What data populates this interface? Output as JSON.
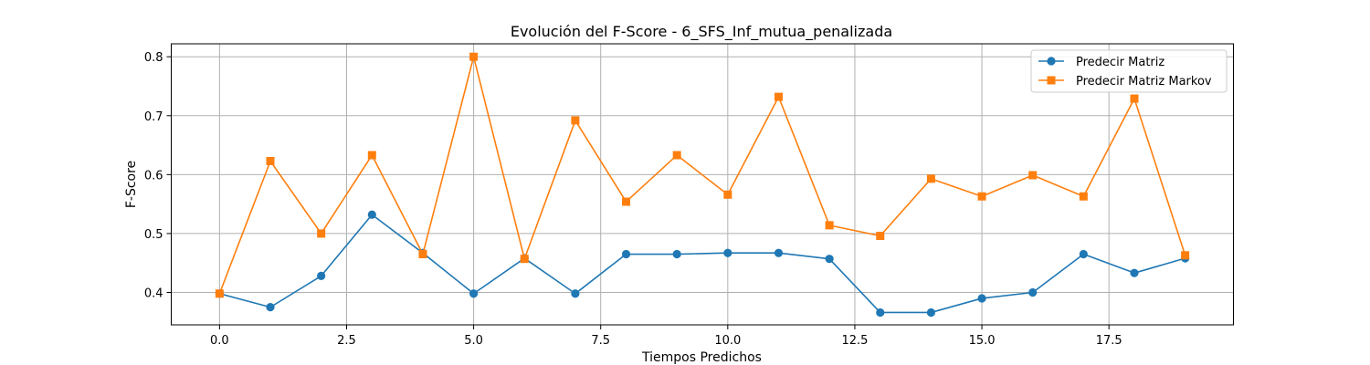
{
  "chart_data": {
    "type": "line",
    "title": "Evolución del F-Score - 6_SFS_Inf_mutua_penalizada",
    "xlabel": "Tiempos Predichos",
    "ylabel": "F-Score",
    "xlim": [
      -0.95,
      19.95
    ],
    "ylim": [
      0.345,
      0.822
    ],
    "x_ticks": [
      0.0,
      2.5,
      5.0,
      7.5,
      10.0,
      12.5,
      15.0,
      17.5
    ],
    "x_tick_labels": [
      "0.0",
      "2.5",
      "5.0",
      "7.5",
      "10.0",
      "12.5",
      "15.0",
      "17.5"
    ],
    "y_ticks": [
      0.4,
      0.5,
      0.6,
      0.7,
      0.8
    ],
    "y_tick_labels": [
      "0.4",
      "0.5",
      "0.6",
      "0.7",
      "0.8"
    ],
    "grid": true,
    "legend_position": "top-right",
    "x": [
      0,
      1,
      2,
      3,
      4,
      5,
      6,
      7,
      8,
      9,
      10,
      11,
      12,
      13,
      14,
      15,
      16,
      17,
      18,
      19
    ],
    "series": [
      {
        "name": "Predecir Matriz",
        "color": "#1f77b4",
        "marker": "circle",
        "values": [
          0.398,
          0.375,
          0.428,
          0.532,
          0.467,
          0.398,
          0.458,
          0.398,
          0.465,
          0.465,
          0.467,
          0.467,
          0.457,
          0.366,
          0.366,
          0.39,
          0.4,
          0.465,
          0.433,
          0.458
        ]
      },
      {
        "name": "Predecir Matriz Markov",
        "color": "#ff7f0e",
        "marker": "square",
        "values": [
          0.398,
          0.623,
          0.5,
          0.633,
          0.465,
          0.8,
          0.457,
          0.692,
          0.554,
          0.633,
          0.566,
          0.732,
          0.514,
          0.496,
          0.593,
          0.563,
          0.599,
          0.563,
          0.729,
          0.463
        ]
      }
    ]
  }
}
